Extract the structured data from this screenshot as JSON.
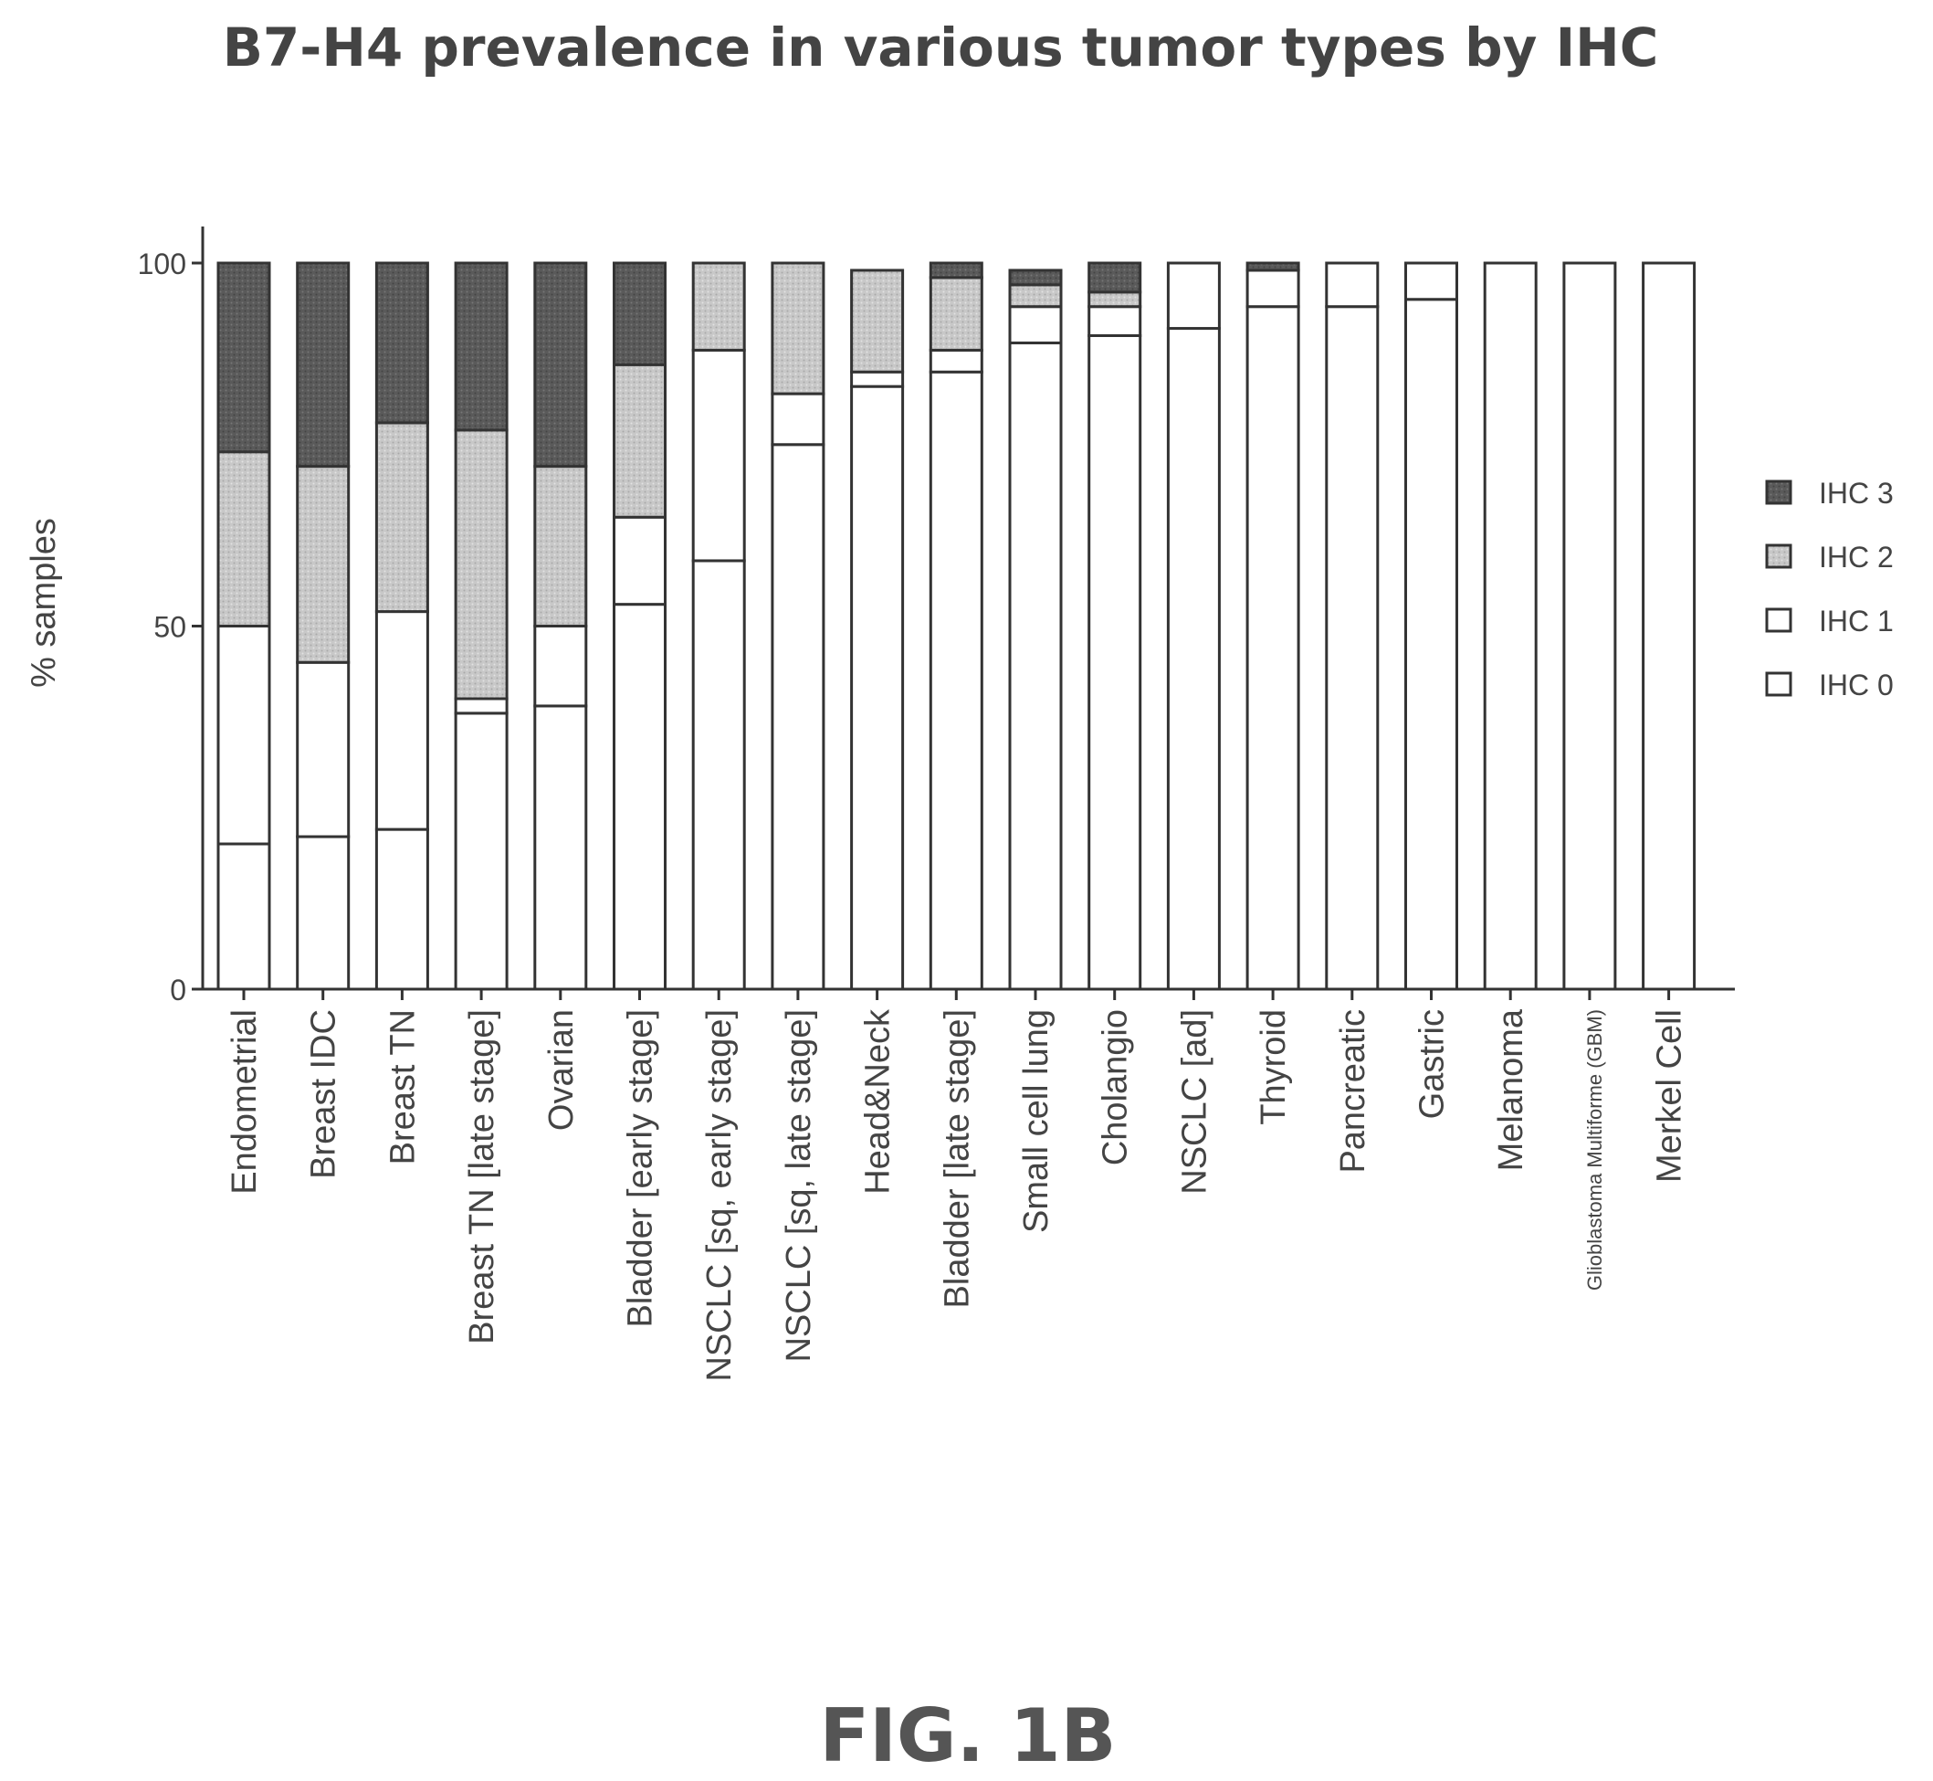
{
  "chart_data": {
    "type": "bar",
    "stacked": true,
    "title": "B7-H4 prevalence in various tumor types by IHC",
    "ylabel": "% samples",
    "xlabel": "",
    "ylim": [
      0,
      100
    ],
    "yticks": [
      "0",
      "50",
      "100"
    ],
    "categories": [
      "Endometrial",
      "Breast IDC",
      "Breast TN",
      "Breast TN [late stage]",
      "Ovarian",
      "Bladder [early stage]",
      "NSCLC [sq, early stage]",
      "NSCLC [sq, late stage]",
      "Head&Neck",
      "Bladder [late stage]",
      "Small cell lung",
      "Cholangio",
      "NSCLC [ad]",
      "Thyroid",
      "Pancreatic",
      "Gastric",
      "Melanoma",
      "Glioblastoma Multiforme (GBM)",
      "Merkel Cell"
    ],
    "legend_position": "right",
    "series": [
      {
        "name": "IHC 0",
        "color": "#ffffff",
        "values": [
          20,
          21,
          22,
          38,
          39,
          53,
          59,
          75,
          83,
          85,
          89,
          90,
          91,
          94,
          94,
          95,
          100,
          100,
          100
        ]
      },
      {
        "name": "IHC 1",
        "color": "#ffffff",
        "values": [
          30,
          24,
          30,
          2,
          11,
          12,
          29,
          7,
          2,
          3,
          5,
          4,
          9,
          5,
          6,
          5,
          0,
          0,
          0
        ]
      },
      {
        "name": "IHC 2",
        "color": "#c8c8c8",
        "values": [
          24,
          27,
          26,
          37,
          22,
          21,
          12,
          18,
          14,
          10,
          3,
          2,
          0,
          0,
          0,
          0,
          0,
          0,
          0
        ]
      },
      {
        "name": "IHC 3",
        "color": "#5a5a5a",
        "values": [
          26,
          28,
          22,
          23,
          28,
          14,
          0,
          0,
          0,
          2,
          2,
          4,
          0,
          1,
          0,
          0,
          0,
          0,
          0
        ]
      }
    ]
  },
  "figure_caption": "FIG. 1B",
  "colors": {
    "axis": "#333333",
    "bar_outline": "#333333",
    "text": "#444444"
  }
}
